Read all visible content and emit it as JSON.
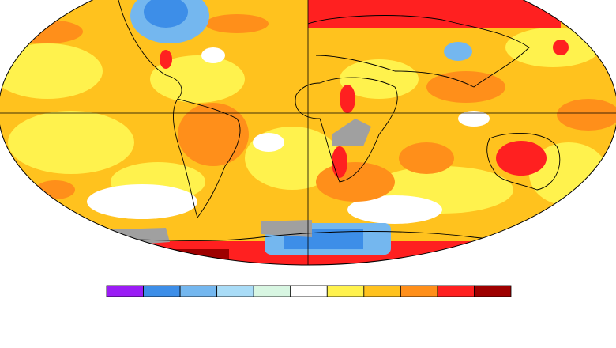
{
  "map": {
    "colorbar": {
      "colors": [
        "#9b1cf5",
        "#3d8ee8",
        "#74b7ef",
        "#a9dcf7",
        "#d8f6e2",
        "#ffffff",
        "#fff24d",
        "#ffc21e",
        "#ff8f1a",
        "#ff2020",
        "#9e0000"
      ]
    }
  }
}
